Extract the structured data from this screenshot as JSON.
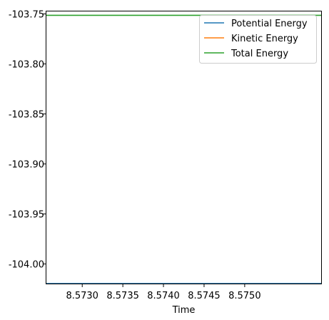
{
  "chart_data": {
    "type": "line",
    "xlabel": "Time",
    "ylabel": "",
    "xlim": [
      8.57255,
      8.57595
    ],
    "ylim": [
      -104.0203,
      -103.7468
    ],
    "x_ticks": [
      {
        "value": 8.573,
        "label": "8.5730"
      },
      {
        "value": 8.5735,
        "label": "8.5735"
      },
      {
        "value": 8.574,
        "label": "8.5740"
      },
      {
        "value": 8.5745,
        "label": "8.5745"
      },
      {
        "value": 8.575,
        "label": "8.5750"
      }
    ],
    "y_ticks": [
      {
        "value": -103.75,
        "label": "-103.75"
      },
      {
        "value": -103.8,
        "label": "-103.80"
      },
      {
        "value": -103.85,
        "label": "-103.85"
      },
      {
        "value": -103.9,
        "label": "-103.90"
      },
      {
        "value": -103.95,
        "label": "-103.95"
      },
      {
        "value": -104.0,
        "label": "-104.00"
      }
    ],
    "series": [
      {
        "name": "Potential Energy",
        "color": "#1f77b4",
        "x": [
          8.57255,
          8.57595
        ],
        "y": [
          -104.0195,
          -104.0195
        ]
      },
      {
        "name": "Kinetic Energy",
        "color": "#ff7f0e",
        "x": [],
        "y": []
      },
      {
        "name": "Total Energy",
        "color": "#2ca02c",
        "x": [
          8.57255,
          8.57595
        ],
        "y": [
          -103.7514,
          -103.7514
        ]
      }
    ],
    "grid": false,
    "legend_position": "top-right"
  }
}
